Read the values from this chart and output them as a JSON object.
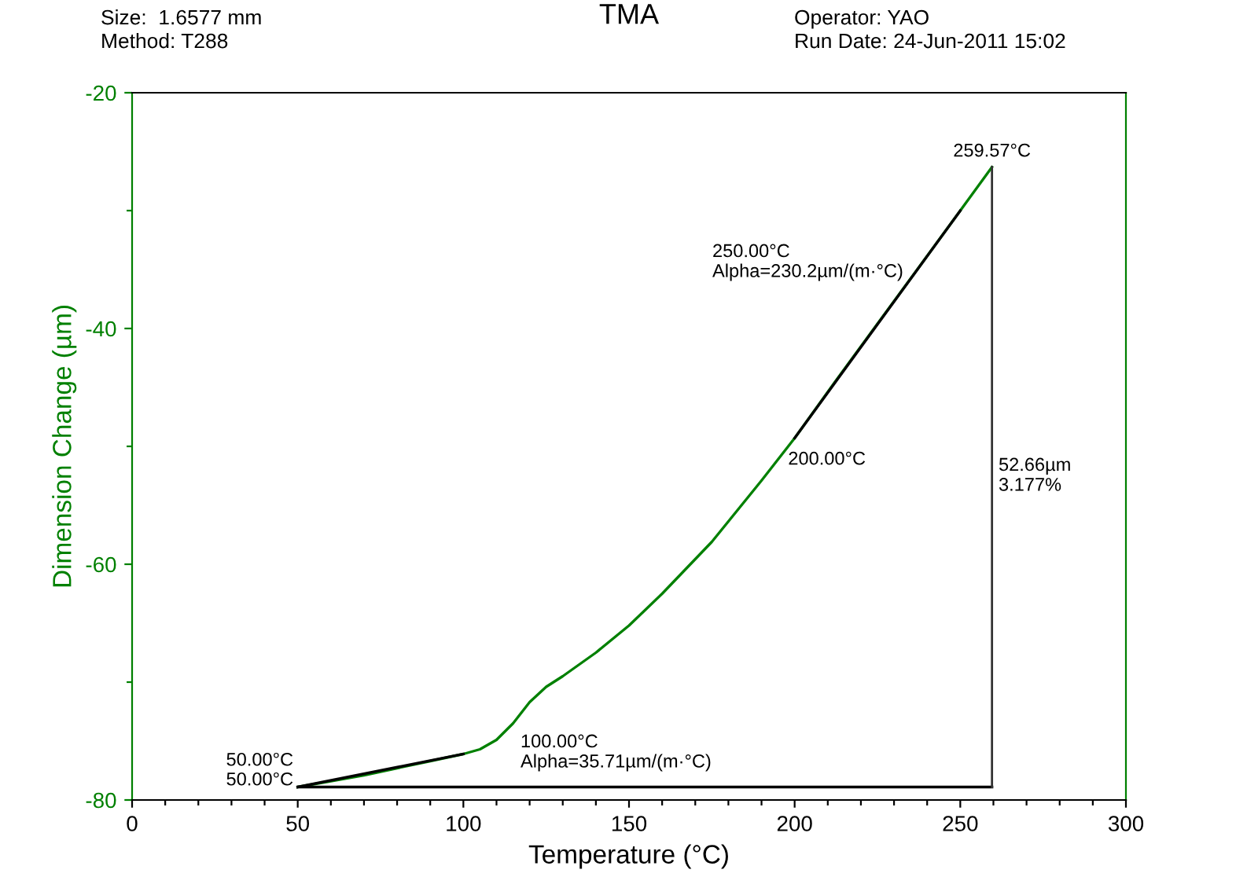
{
  "chart_data": {
    "type": "line",
    "title": "TMA",
    "xlabel": "Temperature (°C)",
    "ylabel": "Dimension Change (µm)",
    "xlim": [
      0,
      300
    ],
    "ylim": [
      -80,
      -20
    ],
    "xticks": [
      0,
      {
        "value": 10,
        "label": null
      },
      {
        "value": 20,
        "label": null
      },
      {
        "value": 30,
        "label": null
      },
      {
        "value": 40,
        "label": null
      },
      50,
      {
        "value": 60,
        "label": null
      },
      {
        "value": 70,
        "label": null
      },
      {
        "value": 80,
        "label": null
      },
      {
        "value": 90,
        "label": null
      },
      100,
      {
        "value": 110,
        "label": null
      },
      {
        "value": 120,
        "label": null
      },
      {
        "value": 130,
        "label": null
      },
      {
        "value": 140,
        "label": null
      },
      150,
      {
        "value": 160,
        "label": null
      },
      {
        "value": 170,
        "label": null
      },
      {
        "value": 180,
        "label": null
      },
      {
        "value": 190,
        "label": null
      },
      200,
      {
        "value": 210,
        "label": null
      },
      {
        "value": 220,
        "label": null
      },
      {
        "value": 230,
        "label": null
      },
      {
        "value": 240,
        "label": null
      },
      250,
      {
        "value": 260,
        "label": null
      },
      {
        "value": 270,
        "label": null
      },
      {
        "value": 280,
        "label": null
      },
      {
        "value": 290,
        "label": null
      },
      300
    ],
    "yticks": [
      -80,
      {
        "value": -70,
        "label": null
      },
      -60,
      {
        "value": -50,
        "label": null
      },
      -40,
      {
        "value": -30,
        "label": null
      },
      -20
    ],
    "grid": false,
    "legend": false,
    "marker": "none",
    "line_style": "solid",
    "series": [
      {
        "color": "#008000",
        "x": [
          50,
          60,
          70,
          80,
          90,
          100,
          105,
          110,
          115,
          120,
          125,
          130,
          140,
          150,
          160,
          175,
          190,
          200,
          212,
          225,
          237,
          250,
          259.57
        ],
        "values": [
          -78.9,
          -78.4,
          -77.9,
          -77.3,
          -76.7,
          -76.1,
          -75.7,
          -74.9,
          -73.5,
          -71.7,
          -70.4,
          -69.5,
          -67.5,
          -65.2,
          -62.5,
          -58.1,
          -52.9,
          -49.3,
          -44.6,
          -39.6,
          -35.0,
          -30.0,
          -26.3
        ]
      },
      {
        "color": "#000000",
        "x": [
          50,
          100
        ],
        "values": [
          -78.9,
          -76.1
        ]
      },
      {
        "color": "#000000",
        "x": [
          200,
          250
        ],
        "values": [
          -49.3,
          -30.0
        ]
      },
      {
        "color": "#000000",
        "x": [
          50,
          259.57
        ],
        "values": [
          -78.9,
          -78.9
        ]
      }
    ],
    "ref_lines": [
      {
        "axis": "x",
        "value": 259.57,
        "label": "52.66µm\n3.177%",
        "color": "#333333"
      }
    ],
    "annotations": [
      {
        "text": "50.00°C",
        "x": 50,
        "y": -78.9
      },
      {
        "text": "50.00°C",
        "x": 50,
        "y": -78.9
      },
      "100.00°C\nAlpha=35.71µm/(m·°C)",
      {
        "text": "200.00°C",
        "x": 200,
        "y": -49.3
      },
      "250.00°C\nAlpha=230.2µm/(m·°C)",
      {
        "text": "259.57°C",
        "x": 259.57,
        "y": -26.3
      },
      "Size:  1.6577 mm",
      "Method: T288",
      "Operator: YAO",
      "Run Date: 24-Jun-2011 15:02"
    ]
  }
}
